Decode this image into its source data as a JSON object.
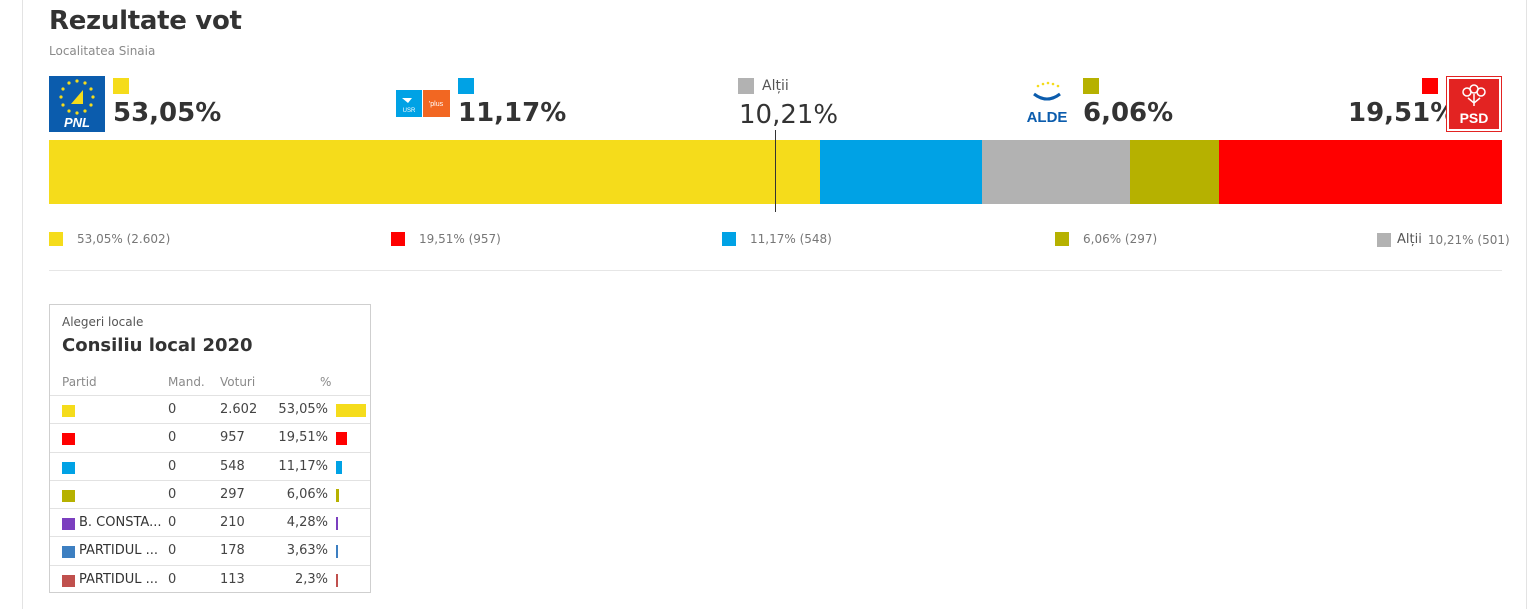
{
  "header": {
    "title": "Rezultate vot",
    "subtitle": "Localitatea Sinaia"
  },
  "colors": {
    "pnl": "#f5dc1b",
    "usr": "#00a2e5",
    "altii": "#b2b2b2",
    "alde": "#b6b100",
    "psd": "#ff0000",
    "b_consta": "#7b3fbf",
    "partidul_1": "#3d7fc1",
    "partidul_2": "#c0504d"
  },
  "top": {
    "pnl": {
      "pct": "53,05%",
      "logo_text": "PNL",
      "logo_icon": "pnl-logo-icon"
    },
    "usr": {
      "pct": "11,17%",
      "logo_text_a": "USR",
      "logo_text_b": "'plus",
      "logo_icon": "usr-plus-logo-icon"
    },
    "altii": {
      "label": "Alții",
      "pct": "10,21%"
    },
    "alde": {
      "pct": "6,06%",
      "logo_text": "ALDE",
      "logo_icon": "alde-logo-icon"
    },
    "psd": {
      "pct": "19,51%",
      "logo_text": "PSD",
      "logo_icon": "psd-logo-icon"
    }
  },
  "chart_data": {
    "type": "bar",
    "stacked": true,
    "series": [
      {
        "key": "pnl",
        "value": 53.05,
        "color": "#f5dc1b"
      },
      {
        "key": "usr",
        "value": 11.17,
        "color": "#00a2e5"
      },
      {
        "key": "altii",
        "value": 10.21,
        "color": "#b2b2b2"
      },
      {
        "key": "alde",
        "value": 6.06,
        "color": "#b6b100"
      },
      {
        "key": "psd",
        "value": 19.51,
        "color": "#ff0000"
      }
    ],
    "marker_value": 50
  },
  "legend": [
    {
      "text": "53,05% (2.602)",
      "color": "#f5dc1b"
    },
    {
      "text": "19,51% (957)",
      "color": "#ff0000"
    },
    {
      "text": "11,17% (548)",
      "color": "#00a2e5"
    },
    {
      "text": "6,06% (297)",
      "color": "#b6b100"
    },
    {
      "name": "Alții",
      "text": "10,21% (501)",
      "color": "#b2b2b2"
    }
  ],
  "card": {
    "category": "Alegeri locale",
    "title": "Consiliu local 2020",
    "headers": {
      "partid": "Partid",
      "mand": "Mand.",
      "voturi": "Voturi",
      "pct": "%"
    },
    "rows": [
      {
        "name": "",
        "mand": "0",
        "voturi": "2.602",
        "pct": "53,05%",
        "pct_value": 53.05,
        "color": "#f5dc1b"
      },
      {
        "name": "",
        "mand": "0",
        "voturi": "957",
        "pct": "19,51%",
        "pct_value": 19.51,
        "color": "#ff0000"
      },
      {
        "name": "",
        "mand": "0",
        "voturi": "548",
        "pct": "11,17%",
        "pct_value": 11.17,
        "color": "#00a2e5"
      },
      {
        "name": "",
        "mand": "0",
        "voturi": "297",
        "pct": "6,06%",
        "pct_value": 6.06,
        "color": "#b6b100"
      },
      {
        "name": "B. CONSTA...",
        "mand": "0",
        "voturi": "210",
        "pct": "4,28%",
        "pct_value": 4.28,
        "color": "#7b3fbf"
      },
      {
        "name": "PARTIDUL ...",
        "mand": "0",
        "voturi": "178",
        "pct": "3,63%",
        "pct_value": 3.63,
        "color": "#3d7fc1"
      },
      {
        "name": "PARTIDUL ...",
        "mand": "0",
        "voturi": "113",
        "pct": "2,3%",
        "pct_value": 2.3,
        "color": "#c0504d"
      }
    ]
  }
}
